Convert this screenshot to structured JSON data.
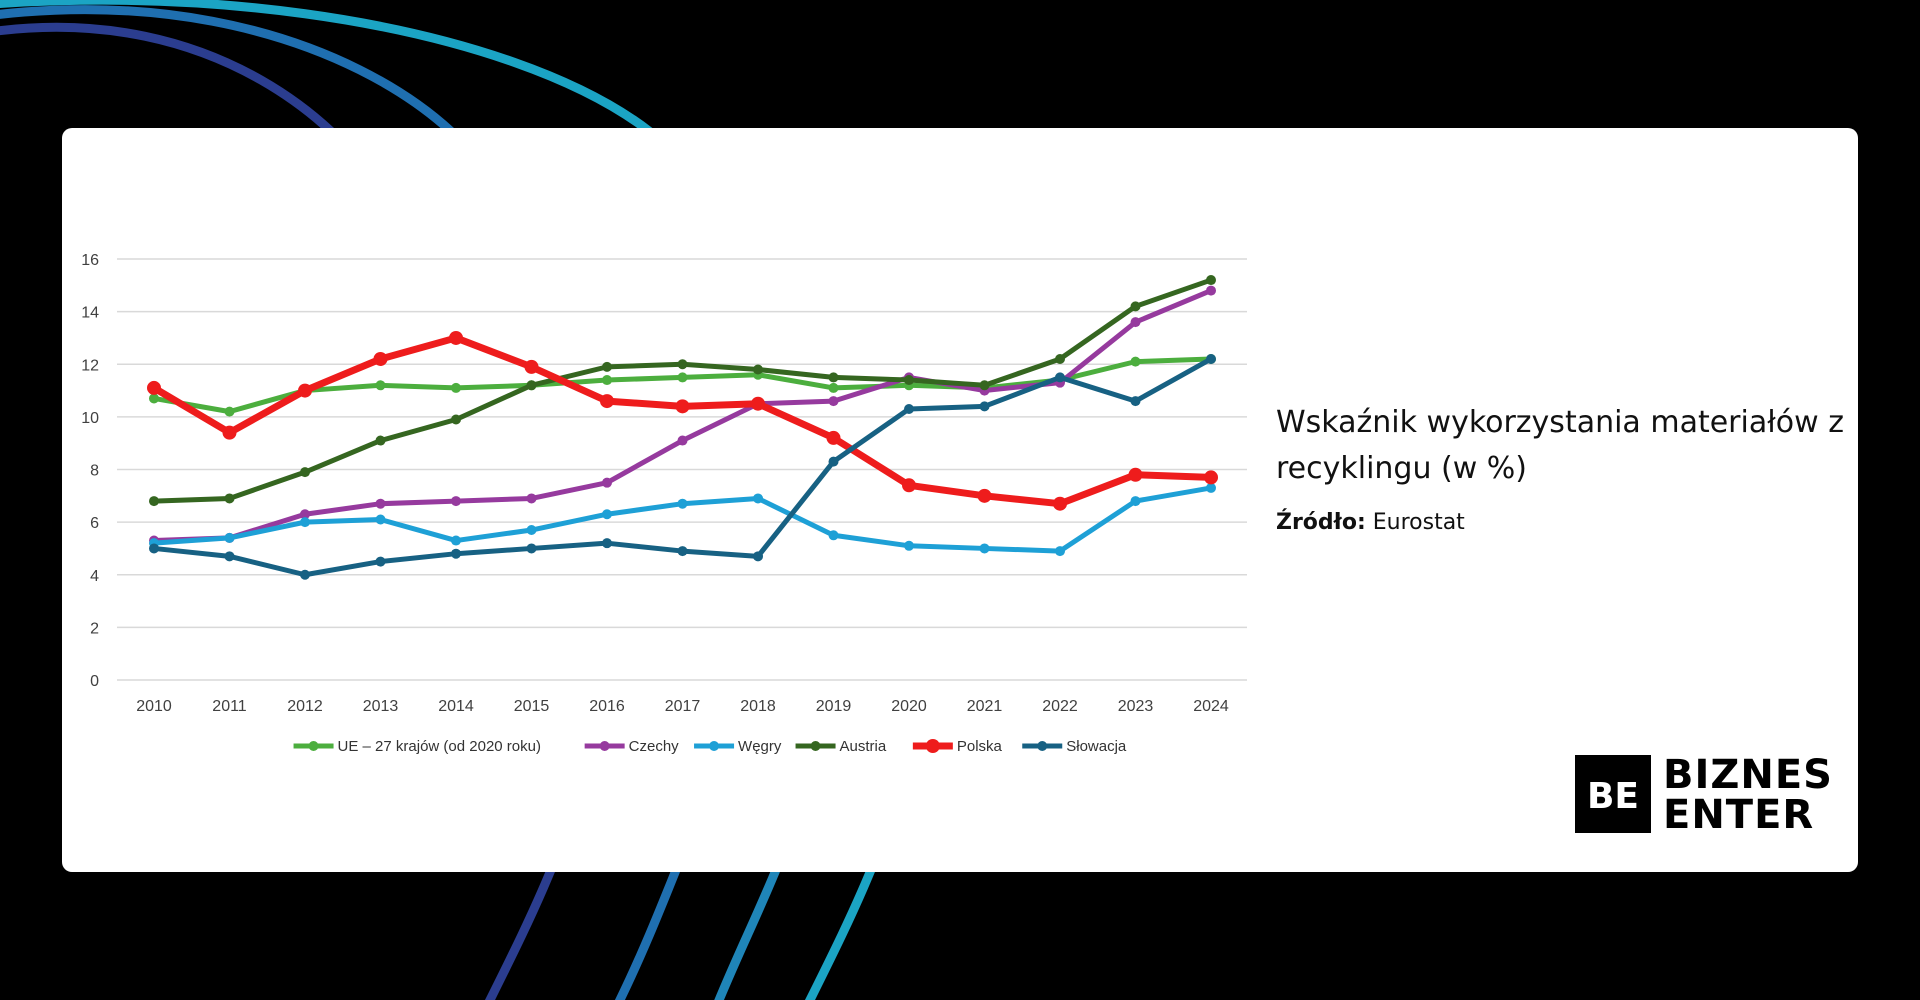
{
  "colors": {
    "background": "#000000",
    "card": "#ffffff",
    "arc_dark_blue": "#2b3d8f",
    "arc_blue": "#1f6fb0",
    "arc_teal": "#1ba4c4"
  },
  "side_title": "Wskaźnik wykorzystania materiałów z recyklingu (w %)",
  "source": {
    "label": "Źródło:",
    "value": "Eurostat"
  },
  "brand": {
    "line1": "BIZNES",
    "line2": "ENTER",
    "mark": "BE"
  },
  "chart_data": {
    "type": "line",
    "title": "",
    "xlabel": "",
    "ylabel": "",
    "x": [
      "2010",
      "2011",
      "2012",
      "2013",
      "2014",
      "2015",
      "2016",
      "2017",
      "2018",
      "2019",
      "2020",
      "2021",
      "2022",
      "2023",
      "2024"
    ],
    "ylim": [
      0,
      16
    ],
    "yticks": [
      "0",
      "2",
      "4",
      "6",
      "8",
      "10",
      "12",
      "14",
      "16"
    ],
    "grid": true,
    "legend_position": "bottom",
    "series": [
      {
        "name": "UE – 27 krajów (od 2020 roku)",
        "color": "#4cae3e",
        "width": 5,
        "marker": 5,
        "values": [
          10.7,
          10.2,
          11.0,
          11.2,
          11.1,
          11.2,
          11.4,
          11.5,
          11.6,
          11.1,
          11.2,
          11.1,
          11.4,
          12.1,
          12.2
        ]
      },
      {
        "name": "Czechy",
        "color": "#963a9e",
        "width": 5,
        "marker": 5,
        "values": [
          5.3,
          5.4,
          6.3,
          6.7,
          6.8,
          6.9,
          7.5,
          9.1,
          10.5,
          10.6,
          11.5,
          11.0,
          11.3,
          13.6,
          14.8
        ]
      },
      {
        "name": "Węgry",
        "color": "#1ea0d6",
        "width": 5,
        "marker": 5,
        "values": [
          5.2,
          5.4,
          6.0,
          6.1,
          5.3,
          5.7,
          6.3,
          6.7,
          6.9,
          5.5,
          5.1,
          5.0,
          4.9,
          6.8,
          7.3
        ]
      },
      {
        "name": "Austria",
        "color": "#356620",
        "width": 5,
        "marker": 5,
        "values": [
          6.8,
          6.9,
          7.9,
          9.1,
          9.9,
          11.2,
          11.9,
          12.0,
          11.8,
          11.5,
          11.4,
          11.2,
          12.2,
          14.2,
          15.2
        ]
      },
      {
        "name": "Polska",
        "color": "#ee1c1c",
        "width": 7,
        "marker": 7,
        "values": [
          11.1,
          9.4,
          11.0,
          12.2,
          13.0,
          11.9,
          10.6,
          10.4,
          10.5,
          9.2,
          7.4,
          7.0,
          6.7,
          7.8,
          7.7
        ]
      },
      {
        "name": "Słowacja",
        "color": "#176183",
        "width": 5,
        "marker": 5,
        "values": [
          5.0,
          4.7,
          4.0,
          4.5,
          4.8,
          5.0,
          5.2,
          4.9,
          4.7,
          8.3,
          10.3,
          10.4,
          11.5,
          10.6,
          12.2
        ]
      }
    ]
  }
}
